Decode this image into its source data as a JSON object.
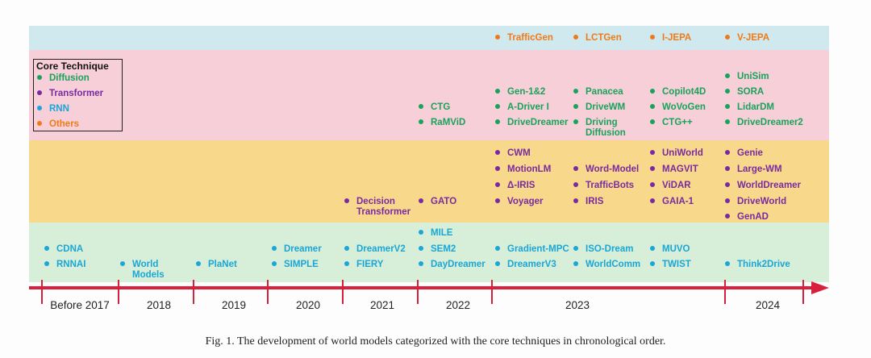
{
  "legend": {
    "title": "Core Technique",
    "entries": [
      {
        "label": "Diffusion",
        "color": "#19a25c"
      },
      {
        "label": "Transformer",
        "color": "#7a2aa0"
      },
      {
        "label": "RNN",
        "color": "#1aa6d6"
      },
      {
        "label": "Others",
        "color": "#f07a18"
      }
    ]
  },
  "items": [
    {
      "id": "dna",
      "label": "CDNA",
      "tech": "rnn"
    },
    {
      "id": "rnnai",
      "label": "RNNAI",
      "tech": "rnn"
    },
    {
      "id": "world-models",
      "label": "World Models",
      "tech": "rnn"
    },
    {
      "id": "planet",
      "label": "PlaNet",
      "tech": "rnn"
    },
    {
      "id": "dreamer",
      "label": "Dreamer",
      "tech": "rnn"
    },
    {
      "id": "simple",
      "label": "SIMPLE",
      "tech": "rnn"
    },
    {
      "id": "decision-transformer",
      "label": "Decision Transformer",
      "tech": "transformer"
    },
    {
      "id": "dreamerv2",
      "label": "DreamerV2",
      "tech": "rnn"
    },
    {
      "id": "fiery",
      "label": "FIERY",
      "tech": "rnn"
    },
    {
      "id": "ctg",
      "label": "CTG",
      "tech": "diffusion"
    },
    {
      "id": "ramvid",
      "label": "RaMViD",
      "tech": "diffusion"
    },
    {
      "id": "gato",
      "label": "GATO",
      "tech": "transformer"
    },
    {
      "id": "mile",
      "label": "MILE",
      "tech": "rnn"
    },
    {
      "id": "sem2",
      "label": "SEM2",
      "tech": "rnn"
    },
    {
      "id": "daydreamer",
      "label": "DayDreamer",
      "tech": "rnn"
    },
    {
      "id": "trafficgen",
      "label": "TrafficGen",
      "tech": "others"
    },
    {
      "id": "gen-1-2",
      "label": "Gen-1&2",
      "tech": "diffusion"
    },
    {
      "id": "a-driver-i",
      "label": "A-Driver I",
      "tech": "diffusion"
    },
    {
      "id": "drivedreamer",
      "label": "DriveDreamer",
      "tech": "diffusion"
    },
    {
      "id": "cwm",
      "label": "CWM",
      "tech": "transformer"
    },
    {
      "id": "motionlm",
      "label": "MotionLM",
      "tech": "transformer"
    },
    {
      "id": "delta-iris",
      "label": "Δ-IRIS",
      "tech": "transformer"
    },
    {
      "id": "voyager",
      "label": "Voyager",
      "tech": "transformer"
    },
    {
      "id": "gradient-mpc",
      "label": "Gradient-MPC",
      "tech": "rnn"
    },
    {
      "id": "dreamerv3",
      "label": "DreamerV3",
      "tech": "rnn"
    },
    {
      "id": "lctgen",
      "label": "LCTGen",
      "tech": "others"
    },
    {
      "id": "panacea",
      "label": "Panacea",
      "tech": "diffusion"
    },
    {
      "id": "drivewm",
      "label": "DriveWM",
      "tech": "diffusion"
    },
    {
      "id": "driving-diffusion",
      "label": "Driving Diffusion",
      "tech": "diffusion"
    },
    {
      "id": "word-model",
      "label": "Word-Model",
      "tech": "transformer"
    },
    {
      "id": "trafficbots",
      "label": "TrafficBots",
      "tech": "transformer"
    },
    {
      "id": "iris",
      "label": "IRIS",
      "tech": "transformer"
    },
    {
      "id": "iso-dream",
      "label": "ISO-Dream",
      "tech": "rnn"
    },
    {
      "id": "worldcomm",
      "label": "WorldComm",
      "tech": "rnn"
    },
    {
      "id": "i-jepa",
      "label": "I-JEPA",
      "tech": "others"
    },
    {
      "id": "copilot4d",
      "label": "Copilot4D",
      "tech": "diffusion"
    },
    {
      "id": "wovogen",
      "label": "WoVoGen",
      "tech": "diffusion"
    },
    {
      "id": "ctg-pp",
      "label": "CTG++",
      "tech": "diffusion"
    },
    {
      "id": "uniworld",
      "label": "UniWorld",
      "tech": "transformer"
    },
    {
      "id": "magvit",
      "label": "MAGVIT",
      "tech": "transformer"
    },
    {
      "id": "vidar",
      "label": "ViDAR",
      "tech": "transformer"
    },
    {
      "id": "gaia-1",
      "label": "GAIA-1",
      "tech": "transformer"
    },
    {
      "id": "muvo",
      "label": "MUVO",
      "tech": "rnn"
    },
    {
      "id": "twist",
      "label": "TWIST",
      "tech": "rnn"
    },
    {
      "id": "v-jepa",
      "label": "V-JEPA",
      "tech": "others"
    },
    {
      "id": "unisim",
      "label": "UniSim",
      "tech": "diffusion"
    },
    {
      "id": "sora",
      "label": "SORA",
      "tech": "diffusion"
    },
    {
      "id": "lidardm",
      "label": "LidarDM",
      "tech": "diffusion"
    },
    {
      "id": "drivedreamer2",
      "label": "DriveDreamer2",
      "tech": "diffusion"
    },
    {
      "id": "genie",
      "label": "Genie",
      "tech": "transformer"
    },
    {
      "id": "large-wm",
      "label": "Large-WM",
      "tech": "transformer"
    },
    {
      "id": "worlddreamer",
      "label": "WorldDreamer",
      "tech": "transformer"
    },
    {
      "id": "driveworld",
      "label": "DriveWorld",
      "tech": "transformer"
    },
    {
      "id": "genad",
      "label": "GenAD",
      "tech": "transformer"
    },
    {
      "id": "think2drive",
      "label": "Think2Drive",
      "tech": "rnn"
    }
  ],
  "colors": {
    "diffusion": "#19a25c",
    "transformer": "#7a2aa0",
    "rnn": "#1aa6d6",
    "others": "#f07a18",
    "band_others": "#cfe9ee",
    "band_diffusion": "#f7cfd8",
    "band_transformer": "#f8d98c",
    "band_rnn": "#d7eed9",
    "axis": "#d8203c"
  },
  "timeline": {
    "years": [
      "Before 2017",
      "2018",
      "2019",
      "2020",
      "2021",
      "2022",
      "2023",
      "2024"
    ]
  },
  "caption": "Fig. 1.  The development of world models categorized with the core techniques in chronological order."
}
